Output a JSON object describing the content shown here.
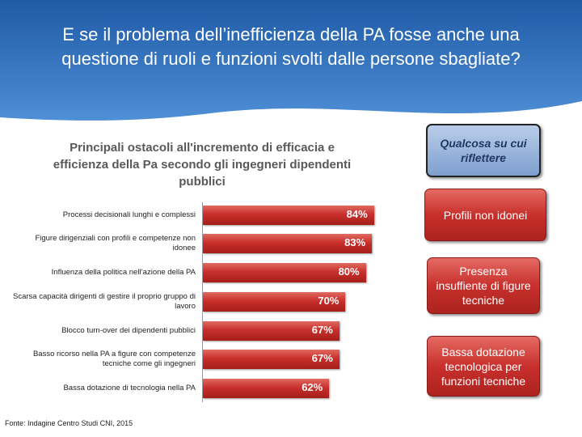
{
  "header": {
    "title": "E se il problema dell’inefficienza della PA fosse anche una questione di ruoli e funzioni svolti dalle persone sbagliate?"
  },
  "chart_data": {
    "type": "bar",
    "orientation": "horizontal",
    "title": "Principali ostacoli all'incremento di efficacia e efficienza della Pa secondo gli ingegneri dipendenti pubblici",
    "categories": [
      "Processi decisionali lunghi e complessi",
      "Figure dirigenziali con profili e competenze non idonee",
      "Influenza della politica nell’azione della PA",
      "Scarsa capacità dirigenti di gestire il proprio gruppo di lavoro",
      "Blocco turn-over dei dipendenti pubblici",
      "Basso ricorso nella PA a figure con competenze tecniche come gli ingegneri",
      "Bassa dotazione di tecnologia nella PA"
    ],
    "values": [
      84,
      83,
      80,
      70,
      67,
      67,
      62
    ],
    "value_labels": [
      "84%",
      "83%",
      "80%",
      "70%",
      "67%",
      "67%",
      "62%"
    ],
    "color": "#c8302c"
  },
  "side_panel": {
    "heading": "Qualcosa su cui riflettere",
    "items": [
      "Profili non idonei",
      "Presenza insuffiente di figure tecniche",
      "Bassa dotazione tecnologica per funzioni tecniche"
    ]
  },
  "source": "Fonte: Indagine Centro Studi CNI, 2015"
}
